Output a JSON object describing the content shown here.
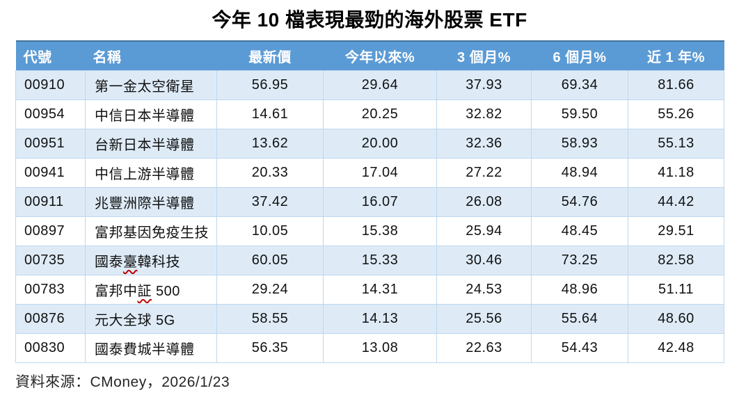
{
  "title": "今年 10 檔表現最勁的海外股票 ETF",
  "source_note": "資料來源：CMoney，2026/1/23",
  "colors": {
    "header_bg": "#5B9BD5",
    "header_top_border": "#41719C",
    "row_alt_bg": "#DEEBF7",
    "row_bg": "#FFFFFF",
    "grid_border": "#BDD7EE",
    "squiggle": "#C00000",
    "header_text": "#FFFFFF",
    "body_text": "#111111"
  },
  "chart_data": {
    "type": "table",
    "title": "今年 10 檔表現最勁的海外股票 ETF",
    "columns": [
      "代號",
      "名稱",
      "最新價",
      "今年以來%",
      "3 個月%",
      "6 個月%",
      "近 1 年%"
    ],
    "rows": [
      [
        "00910",
        "第一金太空衛星",
        "56.95",
        "29.64",
        "37.93",
        "69.34",
        "81.66"
      ],
      [
        "00954",
        "中信日本半導體",
        "14.61",
        "20.25",
        "32.82",
        "59.50",
        "55.26"
      ],
      [
        "00951",
        "台新日本半導體",
        "13.62",
        "20.00",
        "32.36",
        "58.93",
        "55.13"
      ],
      [
        "00941",
        "中信上游半導體",
        "20.33",
        "17.04",
        "27.22",
        "48.94",
        "41.18"
      ],
      [
        "00911",
        "兆豐洲際半導體",
        "37.42",
        "16.07",
        "26.08",
        "54.76",
        "44.42"
      ],
      [
        "00897",
        "富邦基因免疫生技",
        "10.05",
        "15.38",
        "25.94",
        "48.45",
        "29.51"
      ],
      [
        "00735",
        "國泰臺韓科技",
        "60.05",
        "15.33",
        "30.46",
        "73.25",
        "82.58"
      ],
      [
        "00783",
        "富邦中証 500",
        "29.24",
        "14.31",
        "24.53",
        "48.96",
        "51.11"
      ],
      [
        "00876",
        "元大全球 5G",
        "58.55",
        "14.13",
        "25.56",
        "55.64",
        "48.60"
      ],
      [
        "00830",
        "國泰費城半導體",
        "56.35",
        "13.08",
        "22.63",
        "54.43",
        "42.48"
      ]
    ],
    "spellcheck_underlines": [
      {
        "row": 6,
        "text": "臺"
      },
      {
        "row": 7,
        "text": "証"
      }
    ],
    "row_banding": "odd rows light blue, even rows white",
    "legend_position": "none",
    "grid": true
  }
}
